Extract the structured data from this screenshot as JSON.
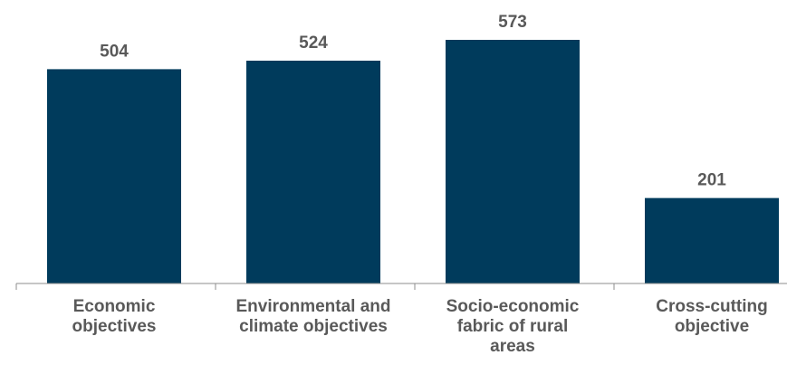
{
  "chart_data": {
    "type": "bar",
    "categories": [
      [
        "Economic",
        "objectives"
      ],
      [
        "Environmental and",
        "climate objectives"
      ],
      [
        "Socio-economic",
        "fabric of rural",
        "areas"
      ],
      [
        "Cross-cutting",
        "objective"
      ]
    ],
    "values": [
      504,
      524,
      573,
      201
    ],
    "value_labels": [
      "504",
      "524",
      "573",
      "201"
    ],
    "title": "",
    "xlabel": "",
    "ylabel": "",
    "ylim": [
      0,
      600
    ],
    "grid": false,
    "legend": "none",
    "colors": {
      "bar": "#003B5C",
      "label_text": "#595959",
      "axis": "#8C8C8C"
    }
  }
}
